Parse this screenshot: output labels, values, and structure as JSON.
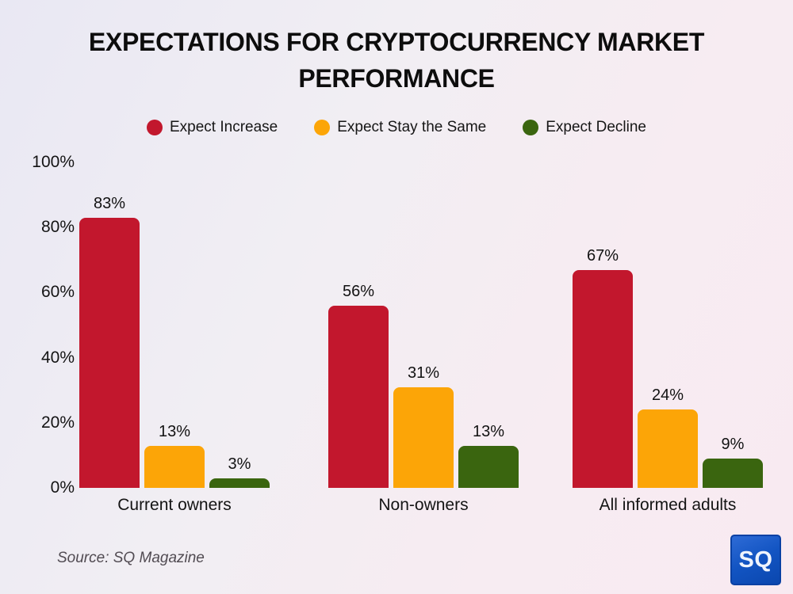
{
  "title": {
    "line1": "EXPECTATIONS FOR CRYPTOCURRENCY MARKET",
    "line2": "PERFORMANCE"
  },
  "legend": [
    {
      "label": "Expect Increase",
      "color": "#C2172D"
    },
    {
      "label": "Expect Stay the Same",
      "color": "#FCA507"
    },
    {
      "label": "Expect Decline",
      "color": "#3A650F"
    }
  ],
  "chart_data": {
    "type": "bar",
    "categories": [
      "Current owners",
      "Non-owners",
      "All informed adults"
    ],
    "series": [
      {
        "name": "Expect Increase",
        "color": "#C2172D",
        "values": [
          83,
          56,
          67
        ]
      },
      {
        "name": "Expect Stay the Same",
        "color": "#FCA507",
        "values": [
          13,
          31,
          24
        ]
      },
      {
        "name": "Expect Decline",
        "color": "#3A650F",
        "values": [
          3,
          13,
          9
        ]
      }
    ],
    "value_label_suffix": "%",
    "y_ticks": [
      0,
      20,
      40,
      60,
      80,
      100
    ],
    "y_tick_suffix": "%",
    "ylim": [
      0,
      100
    ],
    "grid": false,
    "legend_position": "top",
    "title": "EXPECTATIONS FOR CRYPTOCURRENCY MARKET PERFORMANCE"
  },
  "source": {
    "text": "Source: SQ Magazine"
  },
  "logo": {
    "text": "SQ"
  }
}
